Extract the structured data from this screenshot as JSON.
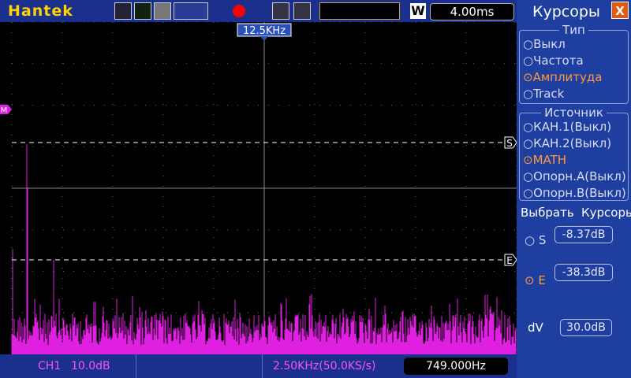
{
  "header": {
    "brand": "Hantek",
    "window_label": "W",
    "timebase": "4.00ms",
    "trigger_freq": "12.5KHz"
  },
  "markers": {
    "start": "S",
    "end": "E",
    "math": "M"
  },
  "menu": {
    "title": "Курсоры",
    "close": "X",
    "type": {
      "heading": "Тип",
      "options": [
        "Выкл",
        "Частота",
        "Амплитуда",
        "Track"
      ],
      "selected": 2
    },
    "source": {
      "heading": "Источник",
      "options": [
        "КАН.1(Выкл)",
        "КАН.2(Выкл)",
        "MATH",
        "Опорн.А(Выкл)",
        "Опорн.В(Выкл)"
      ],
      "selected": 2
    },
    "select": {
      "label": "Выбрать",
      "value": "Курсоры"
    },
    "s": {
      "label": "S",
      "value": "-8.37dB"
    },
    "e": {
      "label": "E",
      "value": "-38.3dB"
    },
    "dv": {
      "label": "dV",
      "value": "30.0dB"
    }
  },
  "status": {
    "channel": "CH1",
    "scale": "10.0dB",
    "sample": "2.50KHz(50.0KS/s)",
    "frequency": "749.000Hz"
  }
}
